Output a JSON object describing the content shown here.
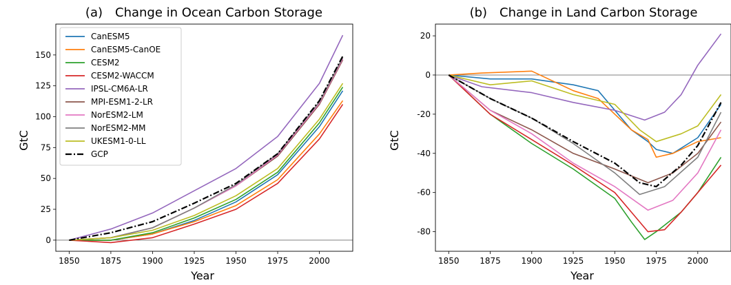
{
  "chart_data": [
    {
      "type": "line",
      "panel_label": "(a)",
      "title": "Change in Ocean Carbon Storage",
      "xlabel": "Year",
      "ylabel": "GtC",
      "xlim": [
        1842,
        2020
      ],
      "ylim": [
        -9,
        175
      ],
      "xticks": [
        1850,
        1875,
        1900,
        1925,
        1950,
        1975,
        2000
      ],
      "yticks": [
        0,
        25,
        50,
        75,
        100,
        125,
        150
      ],
      "zero_line": true,
      "grid": false,
      "legend_position": "upper left",
      "legend": [
        "CanESM5",
        "CanESM5-CanOE",
        "CESM2",
        "CESM2-WACCM",
        "IPSL-CM6A-LR",
        "MPI-ESM1-2-LR",
        "NorESM2-LM",
        "NorESM2-MM",
        "UKESM1-0-LL",
        "GCP"
      ],
      "series": [
        {
          "name": "CanESM5",
          "color": "#1f77b4",
          "style": "solid",
          "x": [
            1850,
            1875,
            1900,
            1925,
            1950,
            1975,
            2000,
            2014
          ],
          "y": [
            0,
            0,
            5,
            16,
            31,
            53,
            92,
            121
          ]
        },
        {
          "name": "CanESM5-CanOE",
          "color": "#ff7f0e",
          "style": "solid",
          "x": [
            1850,
            1875,
            1900,
            1925,
            1950,
            1975,
            2000,
            2014
          ],
          "y": [
            0,
            0,
            5,
            15,
            28,
            49,
            86,
            113
          ]
        },
        {
          "name": "CESM2",
          "color": "#2ca02c",
          "style": "solid",
          "x": [
            1850,
            1875,
            1900,
            1925,
            1950,
            1975,
            2000,
            2014
          ],
          "y": [
            0,
            0,
            6,
            18,
            33,
            55,
            95,
            124
          ]
        },
        {
          "name": "CESM2-WACCM",
          "color": "#d62728",
          "style": "solid",
          "x": [
            1850,
            1875,
            1900,
            1925,
            1950,
            1975,
            2000,
            2014
          ],
          "y": [
            0,
            -2,
            2,
            13,
            25,
            46,
            82,
            110
          ]
        },
        {
          "name": "IPSL-CM6A-LR",
          "color": "#9467bd",
          "style": "solid",
          "x": [
            1850,
            1875,
            1900,
            1925,
            1950,
            1975,
            2000,
            2014
          ],
          "y": [
            0,
            9,
            22,
            40,
            58,
            84,
            127,
            166
          ]
        },
        {
          "name": "MPI-ESM1-2-LR",
          "color": "#8c564b",
          "style": "solid",
          "x": [
            1850,
            1875,
            1900,
            1925,
            1950,
            1975,
            2000,
            2014
          ],
          "y": [
            0,
            2,
            10,
            26,
            44,
            68,
            110,
            146
          ]
        },
        {
          "name": "NorESM2-LM",
          "color": "#e377c2",
          "style": "solid",
          "x": [
            1850,
            1875,
            1900,
            1925,
            1950,
            1975,
            2000,
            2014
          ],
          "y": [
            0,
            2,
            10,
            26,
            44,
            69,
            111,
            147
          ]
        },
        {
          "name": "NorESM2-MM",
          "color": "#7f7f7f",
          "style": "solid",
          "x": [
            1850,
            1875,
            1900,
            1925,
            1950,
            1975,
            2000,
            2014
          ],
          "y": [
            0,
            2,
            10,
            26,
            45,
            70,
            112,
            148
          ]
        },
        {
          "name": "UKESM1-0-LL",
          "color": "#bcbd22",
          "style": "solid",
          "x": [
            1850,
            1875,
            1900,
            1925,
            1950,
            1975,
            2000,
            2014
          ],
          "y": [
            0,
            2,
            8,
            20,
            36,
            58,
            98,
            127
          ]
        },
        {
          "name": "GCP",
          "color": "#000000",
          "style": "dashdot",
          "x": [
            1850,
            1875,
            1900,
            1925,
            1950,
            1975,
            2000,
            2014
          ],
          "y": [
            0,
            6,
            15,
            30,
            46,
            70,
            113,
            149
          ]
        }
      ]
    },
    {
      "type": "line",
      "panel_label": "(b)",
      "title": "Change in Land Carbon Storage",
      "xlabel": "Year",
      "ylabel": "GtC",
      "xlim": [
        1842,
        2020
      ],
      "ylim": [
        -90,
        26
      ],
      "xticks": [
        1850,
        1875,
        1900,
        1925,
        1950,
        1975,
        2000
      ],
      "yticks": [
        20,
        0,
        -20,
        -40,
        -60,
        -80
      ],
      "zero_line": true,
      "grid": false,
      "series": [
        {
          "name": "CanESM5",
          "color": "#1f77b4",
          "style": "solid",
          "x": [
            1850,
            1875,
            1900,
            1925,
            1940,
            1960,
            1970,
            1975,
            1985,
            2000,
            2014
          ],
          "y": [
            0,
            -2,
            -2,
            -5,
            -8,
            -28,
            -34,
            -38,
            -40,
            -32,
            -15
          ]
        },
        {
          "name": "CanESM5-CanOE",
          "color": "#ff7f0e",
          "style": "solid",
          "x": [
            1850,
            1870,
            1900,
            1925,
            1940,
            1960,
            1970,
            1975,
            1985,
            2000,
            2014
          ],
          "y": [
            0,
            1,
            2,
            -8,
            -12,
            -28,
            -33,
            -42,
            -40,
            -34,
            -32
          ]
        },
        {
          "name": "CESM2",
          "color": "#2ca02c",
          "style": "solid",
          "x": [
            1850,
            1875,
            1900,
            1925,
            1950,
            1960,
            1968,
            1975,
            1990,
            2000,
            2014
          ],
          "y": [
            0,
            -20,
            -35,
            -48,
            -63,
            -75,
            -84,
            -80,
            -70,
            -60,
            -42
          ]
        },
        {
          "name": "CESM2-WACCM",
          "color": "#d62728",
          "style": "solid",
          "x": [
            1850,
            1875,
            1900,
            1925,
            1950,
            1960,
            1970,
            1980,
            1990,
            2000,
            2014
          ],
          "y": [
            0,
            -20,
            -33,
            -46,
            -60,
            -70,
            -80,
            -79,
            -70,
            -60,
            -46
          ]
        },
        {
          "name": "IPSL-CM6A-LR",
          "color": "#9467bd",
          "style": "solid",
          "x": [
            1850,
            1870,
            1900,
            1925,
            1950,
            1968,
            1980,
            1990,
            2000,
            2014
          ],
          "y": [
            0,
            -6,
            -9,
            -14,
            -18,
            -23,
            -19,
            -10,
            5,
            21
          ]
        },
        {
          "name": "MPI-ESM1-2-LR",
          "color": "#8c564b",
          "style": "solid",
          "x": [
            1850,
            1875,
            1900,
            1925,
            1950,
            1970,
            1985,
            2000,
            2014
          ],
          "y": [
            0,
            -18,
            -28,
            -40,
            -48,
            -55,
            -50,
            -40,
            -24
          ]
        },
        {
          "name": "NorESM2-LM",
          "color": "#e377c2",
          "style": "solid",
          "x": [
            1850,
            1875,
            1900,
            1925,
            1950,
            1970,
            1985,
            2000,
            2014
          ],
          "y": [
            0,
            -18,
            -30,
            -45,
            -57,
            -69,
            -64,
            -50,
            -28
          ]
        },
        {
          "name": "NorESM2-MM",
          "color": "#7f7f7f",
          "style": "solid",
          "x": [
            1850,
            1875,
            1900,
            1925,
            1950,
            1965,
            1980,
            2000,
            2014
          ],
          "y": [
            0,
            -12,
            -22,
            -35,
            -50,
            -61,
            -57,
            -42,
            -19
          ]
        },
        {
          "name": "UKESM1-0-LL",
          "color": "#bcbd22",
          "style": "solid",
          "x": [
            1850,
            1875,
            1900,
            1925,
            1950,
            1965,
            1975,
            1990,
            2000,
            2014
          ],
          "y": [
            0,
            -5,
            -3,
            -10,
            -15,
            -28,
            -34,
            -30,
            -26,
            -10
          ]
        },
        {
          "name": "GCP",
          "color": "#000000",
          "style": "dashdot",
          "x": [
            1850,
            1875,
            1900,
            1925,
            1950,
            1965,
            1975,
            1990,
            2000,
            2014
          ],
          "y": [
            0,
            -12,
            -22,
            -34,
            -45,
            -55,
            -57,
            -46,
            -36,
            -14
          ]
        }
      ]
    }
  ]
}
